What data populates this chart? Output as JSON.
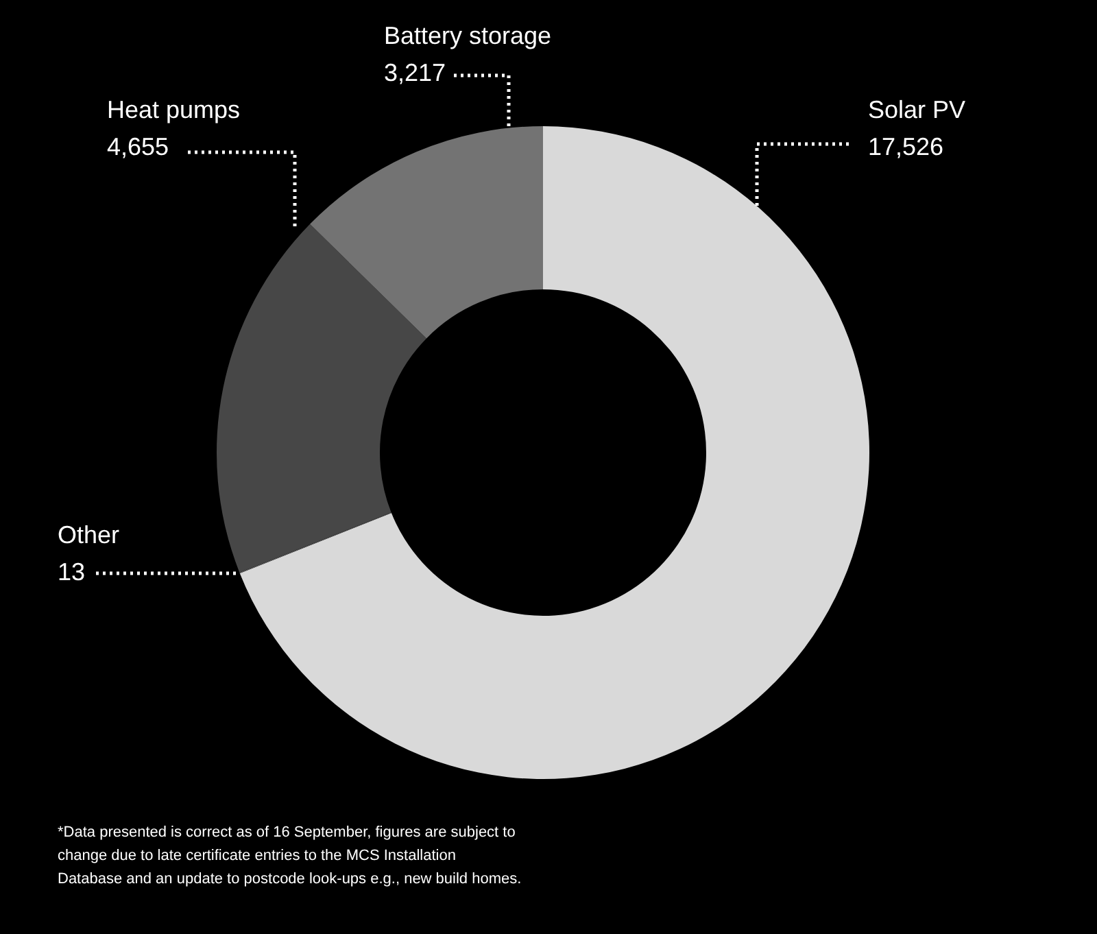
{
  "chart_data": {
    "type": "donut",
    "categories": [
      "Solar PV",
      "Other",
      "Heat pumps",
      "Battery storage"
    ],
    "values": [
      17526,
      13,
      4655,
      3217
    ],
    "value_labels": [
      "17,526",
      "13",
      "4,655",
      "3,217"
    ],
    "colors": [
      "#d9d9d9",
      "#5c5c5c",
      "#474747",
      "#737373"
    ],
    "annotations": [
      "*Data presented is correct as of 16 September, figures are subject to change due to late certificate entries to the MCS Installation Database and an update to postcode look-ups e.g., new build homes."
    ]
  }
}
